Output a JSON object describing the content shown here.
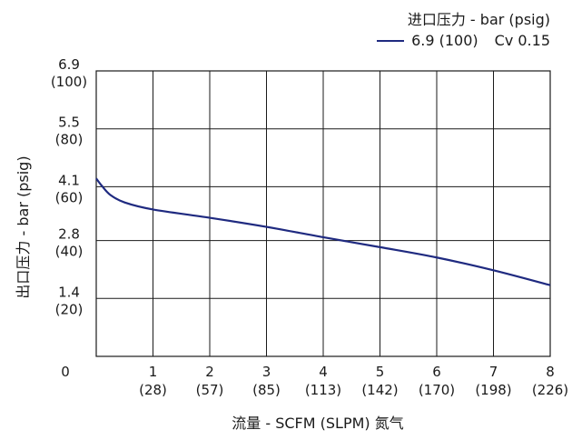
{
  "chart_data": {
    "type": "line",
    "legend_title": "进口压力 - bar (psig)",
    "series": [
      {
        "name": "6.9 (100)",
        "cv_label": "Cv 0.15",
        "color": "#1f2a80",
        "points": [
          {
            "x": 0,
            "y": 4.3
          },
          {
            "x": 0.1,
            "y": 4.12
          },
          {
            "x": 0.25,
            "y": 3.9
          },
          {
            "x": 0.5,
            "y": 3.72
          },
          {
            "x": 1,
            "y": 3.55
          },
          {
            "x": 2,
            "y": 3.35
          },
          {
            "x": 3,
            "y": 3.13
          },
          {
            "x": 4,
            "y": 2.88
          },
          {
            "x": 5,
            "y": 2.64
          },
          {
            "x": 6,
            "y": 2.39
          },
          {
            "x": 7,
            "y": 2.08
          },
          {
            "x": 8,
            "y": 1.72
          }
        ]
      }
    ],
    "xlim": [
      0,
      8
    ],
    "ylim": [
      0,
      6.9
    ],
    "x_ticks": [
      {
        "value": 0,
        "label": "0",
        "sub": ""
      },
      {
        "value": 1,
        "label": "1",
        "sub": "(28)"
      },
      {
        "value": 2,
        "label": "2",
        "sub": "(57)"
      },
      {
        "value": 3,
        "label": "3",
        "sub": "(85)"
      },
      {
        "value": 4,
        "label": "4",
        "sub": "(113)"
      },
      {
        "value": 5,
        "label": "5",
        "sub": "(142)"
      },
      {
        "value": 6,
        "label": "6",
        "sub": "(170)"
      },
      {
        "value": 7,
        "label": "7",
        "sub": "(198)"
      },
      {
        "value": 8,
        "label": "8",
        "sub": "(226)"
      }
    ],
    "y_ticks": [
      {
        "value": 1.4,
        "label": "1.4",
        "sub": "(20)"
      },
      {
        "value": 2.8,
        "label": "2.8",
        "sub": "(40)"
      },
      {
        "value": 4.1,
        "label": "4.1",
        "sub": "(60)"
      },
      {
        "value": 5.5,
        "label": "5.5",
        "sub": "(80)"
      },
      {
        "value": 6.9,
        "label": "6.9",
        "sub": "(100)"
      }
    ],
    "xlabel": "流量 - SCFM (SLPM) 氮气",
    "ylabel": "出口压力 - bar (psig)",
    "grid": true
  }
}
